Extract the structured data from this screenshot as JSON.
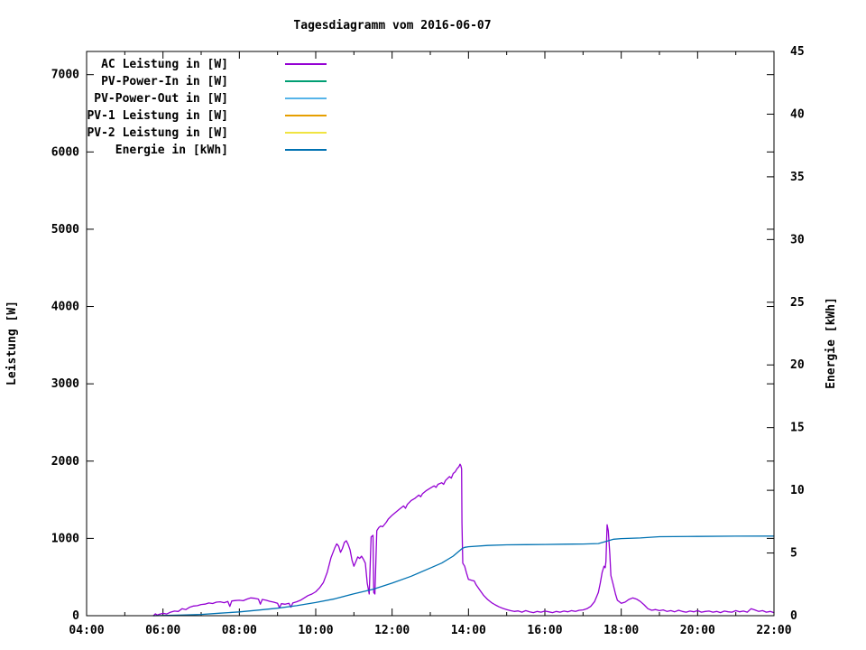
{
  "title": "Tagesdiagramm vom 2016-06-07",
  "chart_data": {
    "type": "line",
    "title": "Tagesdiagramm vom 2016-06-07",
    "x_axis": {
      "unit": "time of day",
      "range_hours": [
        4,
        22
      ],
      "major_tick_labels": [
        "04:00",
        "06:00",
        "08:00",
        "10:00",
        "12:00",
        "14:00",
        "16:00",
        "18:00",
        "20:00",
        "22:00"
      ],
      "major_tick_every_hours": 2,
      "minor_tick_every_hours": 1
    },
    "y_left_axis": {
      "label": "Leistung [W]",
      "ticks": [
        0,
        1000,
        2000,
        3000,
        4000,
        5000,
        6000,
        7000
      ],
      "range": [
        0,
        7300
      ]
    },
    "y_right_axis": {
      "label": "Energie [kWh]",
      "ticks": [
        0,
        5,
        10,
        15,
        20,
        25,
        30,
        35,
        40,
        45
      ],
      "range": [
        0,
        45
      ]
    },
    "grid": "off",
    "legend_position": "top-left-inside",
    "series": [
      {
        "name": "AC Leistung in [W]",
        "color": "#9400d3",
        "axis": "left",
        "points": [
          [
            5.75,
            0
          ],
          [
            5.8,
            25
          ],
          [
            5.85,
            8
          ],
          [
            5.9,
            18
          ],
          [
            6.0,
            30
          ],
          [
            6.1,
            22
          ],
          [
            6.2,
            45
          ],
          [
            6.3,
            60
          ],
          [
            6.4,
            55
          ],
          [
            6.5,
            90
          ],
          [
            6.6,
            80
          ],
          [
            6.7,
            110
          ],
          [
            6.8,
            125
          ],
          [
            6.9,
            130
          ],
          [
            7.0,
            145
          ],
          [
            7.1,
            150
          ],
          [
            7.2,
            165
          ],
          [
            7.3,
            158
          ],
          [
            7.4,
            175
          ],
          [
            7.5,
            180
          ],
          [
            7.6,
            168
          ],
          [
            7.7,
            185
          ],
          [
            7.75,
            120
          ],
          [
            7.8,
            190
          ],
          [
            7.9,
            196
          ],
          [
            8.0,
            200
          ],
          [
            8.1,
            194
          ],
          [
            8.2,
            215
          ],
          [
            8.3,
            230
          ],
          [
            8.4,
            225
          ],
          [
            8.5,
            215
          ],
          [
            8.55,
            150
          ],
          [
            8.6,
            210
          ],
          [
            8.7,
            200
          ],
          [
            8.8,
            186
          ],
          [
            8.9,
            175
          ],
          [
            9.0,
            160
          ],
          [
            9.05,
            100
          ],
          [
            9.1,
            155
          ],
          [
            9.2,
            148
          ],
          [
            9.3,
            160
          ],
          [
            9.35,
            110
          ],
          [
            9.4,
            165
          ],
          [
            9.5,
            180
          ],
          [
            9.6,
            200
          ],
          [
            9.7,
            230
          ],
          [
            9.8,
            260
          ],
          [
            9.9,
            280
          ],
          [
            10.0,
            310
          ],
          [
            10.1,
            360
          ],
          [
            10.2,
            430
          ],
          [
            10.3,
            560
          ],
          [
            10.4,
            750
          ],
          [
            10.5,
            880
          ],
          [
            10.55,
            930
          ],
          [
            10.6,
            900
          ],
          [
            10.65,
            820
          ],
          [
            10.7,
            870
          ],
          [
            10.75,
            950
          ],
          [
            10.8,
            970
          ],
          [
            10.85,
            920
          ],
          [
            10.9,
            850
          ],
          [
            10.95,
            720
          ],
          [
            11.0,
            640
          ],
          [
            11.05,
            700
          ],
          [
            11.1,
            760
          ],
          [
            11.15,
            740
          ],
          [
            11.2,
            770
          ],
          [
            11.25,
            730
          ],
          [
            11.3,
            680
          ],
          [
            11.35,
            420
          ],
          [
            11.4,
            280
          ],
          [
            11.45,
            1020
          ],
          [
            11.5,
            1040
          ],
          [
            11.52,
            300
          ],
          [
            11.55,
            280
          ],
          [
            11.6,
            1100
          ],
          [
            11.65,
            1140
          ],
          [
            11.7,
            1160
          ],
          [
            11.75,
            1150
          ],
          [
            11.8,
            1180
          ],
          [
            11.85,
            1210
          ],
          [
            11.9,
            1250
          ],
          [
            12.0,
            1300
          ],
          [
            12.1,
            1340
          ],
          [
            12.2,
            1380
          ],
          [
            12.3,
            1420
          ],
          [
            12.35,
            1390
          ],
          [
            12.4,
            1440
          ],
          [
            12.5,
            1490
          ],
          [
            12.6,
            1520
          ],
          [
            12.7,
            1560
          ],
          [
            12.75,
            1540
          ],
          [
            12.8,
            1580
          ],
          [
            12.9,
            1620
          ],
          [
            13.0,
            1650
          ],
          [
            13.1,
            1680
          ],
          [
            13.15,
            1660
          ],
          [
            13.2,
            1700
          ],
          [
            13.3,
            1720
          ],
          [
            13.35,
            1700
          ],
          [
            13.4,
            1750
          ],
          [
            13.5,
            1800
          ],
          [
            13.55,
            1780
          ],
          [
            13.6,
            1840
          ],
          [
            13.65,
            1860
          ],
          [
            13.7,
            1900
          ],
          [
            13.75,
            1930
          ],
          [
            13.78,
            1960
          ],
          [
            13.8,
            1940
          ],
          [
            13.82,
            1900
          ],
          [
            13.83,
            1200
          ],
          [
            13.85,
            680
          ],
          [
            13.9,
            640
          ],
          [
            13.95,
            550
          ],
          [
            14.0,
            470
          ],
          [
            14.1,
            455
          ],
          [
            14.15,
            450
          ],
          [
            14.2,
            400
          ],
          [
            14.3,
            330
          ],
          [
            14.4,
            260
          ],
          [
            14.5,
            210
          ],
          [
            14.6,
            170
          ],
          [
            14.7,
            140
          ],
          [
            14.8,
            115
          ],
          [
            14.9,
            95
          ],
          [
            15.0,
            80
          ],
          [
            15.1,
            65
          ],
          [
            15.2,
            55
          ],
          [
            15.3,
            62
          ],
          [
            15.4,
            45
          ],
          [
            15.5,
            65
          ],
          [
            15.6,
            50
          ],
          [
            15.7,
            40
          ],
          [
            15.8,
            55
          ],
          [
            15.9,
            45
          ],
          [
            16.0,
            60
          ],
          [
            16.1,
            50
          ],
          [
            16.2,
            40
          ],
          [
            16.3,
            55
          ],
          [
            16.4,
            45
          ],
          [
            16.5,
            60
          ],
          [
            16.6,
            50
          ],
          [
            16.7,
            65
          ],
          [
            16.8,
            55
          ],
          [
            16.9,
            70
          ],
          [
            17.0,
            75
          ],
          [
            17.1,
            90
          ],
          [
            17.2,
            120
          ],
          [
            17.3,
            180
          ],
          [
            17.4,
            300
          ],
          [
            17.45,
            420
          ],
          [
            17.5,
            560
          ],
          [
            17.55,
            640
          ],
          [
            17.58,
            620
          ],
          [
            17.6,
            700
          ],
          [
            17.63,
            1176
          ],
          [
            17.66,
            1100
          ],
          [
            17.7,
            800
          ],
          [
            17.73,
            520
          ],
          [
            17.78,
            420
          ],
          [
            17.85,
            280
          ],
          [
            17.9,
            200
          ],
          [
            18.0,
            160
          ],
          [
            18.1,
            175
          ],
          [
            18.2,
            210
          ],
          [
            18.3,
            230
          ],
          [
            18.4,
            215
          ],
          [
            18.5,
            185
          ],
          [
            18.6,
            140
          ],
          [
            18.7,
            90
          ],
          [
            18.8,
            70
          ],
          [
            18.9,
            80
          ],
          [
            19.0,
            65
          ],
          [
            19.1,
            75
          ],
          [
            19.2,
            55
          ],
          [
            19.3,
            65
          ],
          [
            19.4,
            50
          ],
          [
            19.5,
            70
          ],
          [
            19.6,
            55
          ],
          [
            19.7,
            45
          ],
          [
            19.8,
            60
          ],
          [
            19.9,
            50
          ],
          [
            20.0,
            65
          ],
          [
            20.1,
            45
          ],
          [
            20.2,
            55
          ],
          [
            20.3,
            60
          ],
          [
            20.4,
            45
          ],
          [
            20.5,
            55
          ],
          [
            20.6,
            40
          ],
          [
            20.7,
            60
          ],
          [
            20.8,
            50
          ],
          [
            20.9,
            45
          ],
          [
            21.0,
            65
          ],
          [
            21.1,
            50
          ],
          [
            21.2,
            60
          ],
          [
            21.3,
            45
          ],
          [
            21.4,
            90
          ],
          [
            21.5,
            75
          ],
          [
            21.6,
            55
          ],
          [
            21.7,
            65
          ],
          [
            21.8,
            45
          ],
          [
            21.9,
            55
          ],
          [
            22.0,
            40
          ]
        ]
      },
      {
        "name": "PV-Power-In in [W]",
        "color": "#009e73",
        "axis": "left",
        "points": [],
        "note": "flat at 0, not visible in plot"
      },
      {
        "name": "PV-Power-Out in [W]",
        "color": "#56b4e9",
        "axis": "left",
        "points": [],
        "note": "flat at 0, not visible in plot"
      },
      {
        "name": "PV-1 Leistung in [W]",
        "color": "#e69f00",
        "axis": "left",
        "points": [],
        "note": "flat at 0, not visible in plot"
      },
      {
        "name": "PV-2 Leistung in [W]",
        "color": "#f0e442",
        "axis": "left",
        "points": [],
        "note": "flat at 0, not visible in plot"
      },
      {
        "name": "Energie in [kWh]",
        "color": "#0072b2",
        "axis": "right",
        "points": [
          [
            5.75,
            0.0
          ],
          [
            6.5,
            0.05
          ],
          [
            7.0,
            0.1
          ],
          [
            7.5,
            0.2
          ],
          [
            8.0,
            0.3
          ],
          [
            8.5,
            0.45
          ],
          [
            9.0,
            0.6
          ],
          [
            9.5,
            0.8
          ],
          [
            10.0,
            1.05
          ],
          [
            10.5,
            1.35
          ],
          [
            11.0,
            1.75
          ],
          [
            11.5,
            2.1
          ],
          [
            12.0,
            2.6
          ],
          [
            12.5,
            3.15
          ],
          [
            13.0,
            3.8
          ],
          [
            13.3,
            4.2
          ],
          [
            13.6,
            4.75
          ],
          [
            13.83,
            5.35
          ],
          [
            13.9,
            5.45
          ],
          [
            14.0,
            5.5
          ],
          [
            14.5,
            5.6
          ],
          [
            15.0,
            5.65
          ],
          [
            15.5,
            5.67
          ],
          [
            16.0,
            5.68
          ],
          [
            16.5,
            5.7
          ],
          [
            17.0,
            5.72
          ],
          [
            17.4,
            5.75
          ],
          [
            17.63,
            5.95
          ],
          [
            17.8,
            6.1
          ],
          [
            18.0,
            6.15
          ],
          [
            18.5,
            6.2
          ],
          [
            19.0,
            6.3
          ],
          [
            20.0,
            6.32
          ],
          [
            21.0,
            6.34
          ],
          [
            22.0,
            6.35
          ]
        ]
      }
    ]
  }
}
